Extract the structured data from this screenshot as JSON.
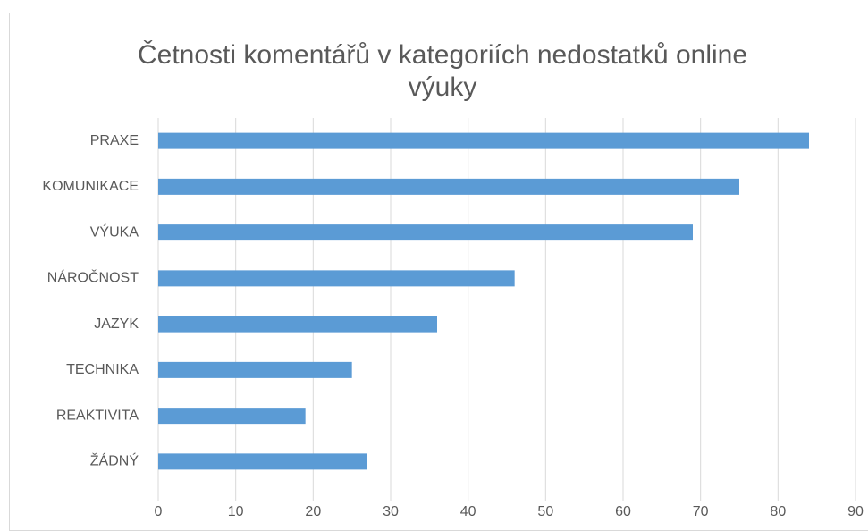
{
  "chart_data": {
    "type": "bar",
    "orientation": "horizontal",
    "title": "Četnosti komentářů v kategoriích nedostatků online výuky",
    "categories": [
      "PRAXE",
      "KOMUNIKACE",
      "VÝUKA",
      "NÁROČNOST",
      "JAZYK",
      "TECHNIKA",
      "REAKTIVITA",
      "ŽÁDNÝ"
    ],
    "values": [
      84,
      75,
      69,
      46,
      36,
      25,
      19,
      27
    ],
    "color": "#5b9bd5",
    "xlim": [
      0,
      90
    ],
    "xticks": [
      0,
      10,
      20,
      30,
      40,
      50,
      60,
      70,
      80,
      90
    ],
    "grid": true
  }
}
